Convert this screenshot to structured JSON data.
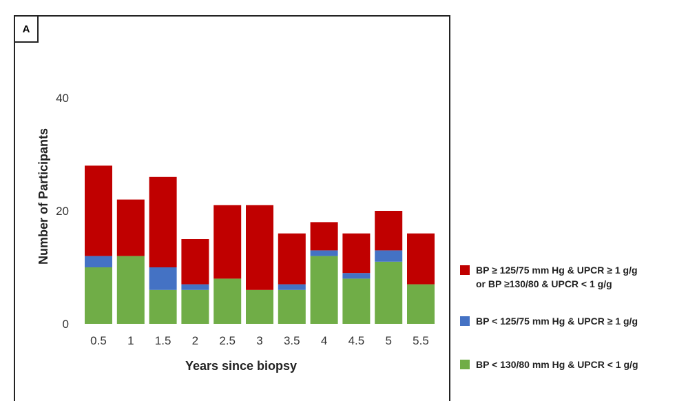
{
  "panel_label": "A",
  "chart_data": {
    "type": "bar",
    "stacked": true,
    "categories": [
      "0.5",
      "1",
      "1.5",
      "2",
      "2.5",
      "3",
      "3.5",
      "4",
      "4.5",
      "5",
      "5.5"
    ],
    "series": [
      {
        "name": "BP < 130/80 mm Hg & UPCR < 1 g/g",
        "color": "#70ad47",
        "values": [
          10,
          12,
          6,
          6,
          8,
          6,
          6,
          12,
          8,
          11,
          7
        ]
      },
      {
        "name": "BP < 125/75 mm Hg & UPCR ≥ 1 g/g",
        "color": "#4472c4",
        "values": [
          2,
          0,
          4,
          1,
          0,
          0,
          1,
          1,
          1,
          2,
          0
        ]
      },
      {
        "name": "BP ≥ 125/75 mm Hg & UPCR ≥ 1 g/g or BP ≥130/80 & UPCR < 1 g/g",
        "color": "#c00000",
        "values": [
          16,
          10,
          16,
          8,
          13,
          15,
          9,
          5,
          7,
          7,
          9
        ]
      }
    ],
    "xlabel": "Years since biopsy",
    "ylabel": "Number of Participants",
    "ylim": [
      0,
      40
    ],
    "yticks": [
      "0",
      "20",
      "40"
    ],
    "grid": false,
    "legend_position": "right"
  },
  "legend": [
    {
      "line1": "BP ≥ 125/75 mm Hg & UPCR ≥ 1 g/g",
      "line2": "or BP ≥130/80 & UPCR < 1 g/g",
      "color": "#c00000"
    },
    {
      "line1": "BP < 125/75 mm Hg & UPCR ≥ 1 g/g",
      "line2": "",
      "color": "#4472c4"
    },
    {
      "line1": "BP < 130/80 mm Hg & UPCR < 1 g/g",
      "line2": "",
      "color": "#70ad47"
    }
  ]
}
